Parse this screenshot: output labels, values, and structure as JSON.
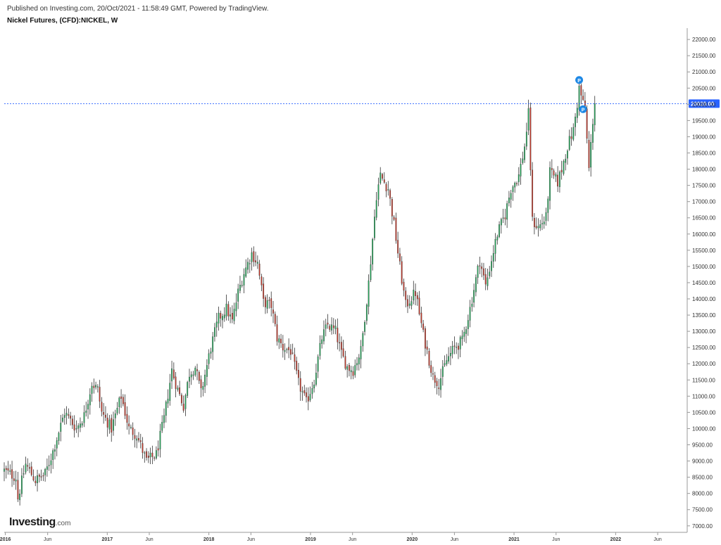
{
  "header": {
    "published": "Published on Investing.com, 20/Oct/2021 - 11:58:49 GMT, Powered by TradingView.",
    "symbol": "Nickel Futures, (CFD):NICKEL, W"
  },
  "logo": {
    "brand": "Investing",
    "domain": ".com"
  },
  "colors": {
    "up": "#26a65b",
    "down": "#c0392b",
    "wick": "#333333",
    "price_line": "#2962ff",
    "marker": "#1e88e5"
  },
  "chart_data": {
    "type": "candlestick",
    "interval": "weekly",
    "y_axis": {
      "position": "right",
      "range": [
        6800,
        22350
      ],
      "ticks": [
        7000,
        7500,
        8000,
        8500,
        9000,
        9500,
        10000,
        10500,
        11000,
        11500,
        12000,
        12500,
        13000,
        13500,
        14000,
        14500,
        15000,
        15500,
        16000,
        16500,
        17000,
        17500,
        18000,
        18500,
        19000,
        19500,
        20000,
        20500,
        21000,
        21500,
        22000
      ],
      "tick_labels": [
        "7000.00",
        "7500.00",
        "8000.00",
        "8500.00",
        "9000.00",
        "9500.00",
        "10000.00",
        "10500.00",
        "11000.00",
        "11500.00",
        "12000.00",
        "12500.00",
        "13000.00",
        "13500.00",
        "14000.00",
        "14500.00",
        "15000.00",
        "15500.00",
        "16000.00",
        "16500.00",
        "17000.00",
        "17500.00",
        "18000.00",
        "18500.00",
        "19000.00",
        "19500.00",
        "20000.00",
        "20500.00",
        "21000.00",
        "21500.00",
        "22000.00"
      ]
    },
    "x_axis": {
      "range": [
        "2015-12-28",
        "2022-09-15"
      ],
      "ticks": [
        {
          "date": "2016-01-01",
          "label": "2016",
          "major": true
        },
        {
          "date": "2016-06-01",
          "label": "Jun",
          "major": false
        },
        {
          "date": "2017-01-01",
          "label": "2017",
          "major": true
        },
        {
          "date": "2017-06-01",
          "label": "Jun",
          "major": false
        },
        {
          "date": "2018-01-01",
          "label": "2018",
          "major": true
        },
        {
          "date": "2018-06-01",
          "label": "Jun",
          "major": false
        },
        {
          "date": "2019-01-01",
          "label": "2019",
          "major": true
        },
        {
          "date": "2019-06-01",
          "label": "Jun",
          "major": false
        },
        {
          "date": "2020-01-01",
          "label": "2020",
          "major": true
        },
        {
          "date": "2020-06-01",
          "label": "Jun",
          "major": false
        },
        {
          "date": "2021-01-01",
          "label": "2021",
          "major": true
        },
        {
          "date": "2021-06-01",
          "label": "Jun",
          "major": false
        },
        {
          "date": "2022-01-01",
          "label": "2022",
          "major": true
        },
        {
          "date": "2022-06-01",
          "label": "Jun",
          "major": false
        }
      ]
    },
    "current_price": {
      "value": 20020,
      "label": "20020.00"
    },
    "markers": [
      {
        "date": "2021-08-23",
        "price": 20750,
        "label": "P"
      },
      {
        "date": "2021-09-06",
        "price": 19850,
        "label": "P"
      }
    ],
    "close_anchors": [
      [
        "2015-12-28",
        8700
      ],
      [
        "2016-02-08",
        8500
      ],
      [
        "2016-02-15",
        7850
      ],
      [
        "2016-03-14",
        8900
      ],
      [
        "2016-04-18",
        8400
      ],
      [
        "2016-05-23",
        8600
      ],
      [
        "2016-06-20",
        9300
      ],
      [
        "2016-08-01",
        10500
      ],
      [
        "2016-09-12",
        10000
      ],
      [
        "2016-10-10",
        10400
      ],
      [
        "2016-11-07",
        11400
      ],
      [
        "2016-11-28",
        11200
      ],
      [
        "2016-12-12",
        10500
      ],
      [
        "2017-01-16",
        10000
      ],
      [
        "2017-02-06",
        10600
      ],
      [
        "2017-02-20",
        11000
      ],
      [
        "2017-03-20",
        10000
      ],
      [
        "2017-04-17",
        9800
      ],
      [
        "2017-05-22",
        9000
      ],
      [
        "2017-06-26",
        9200
      ],
      [
        "2017-07-24",
        10300
      ],
      [
        "2017-08-21",
        11800
      ],
      [
        "2017-09-11",
        11200
      ],
      [
        "2017-10-02",
        10700
      ],
      [
        "2017-10-23",
        11700
      ],
      [
        "2017-11-13",
        11900
      ],
      [
        "2017-12-04",
        11100
      ],
      [
        "2018-01-08",
        12500
      ],
      [
        "2018-02-05",
        13400
      ],
      [
        "2018-03-05",
        13700
      ],
      [
        "2018-03-26",
        13300
      ],
      [
        "2018-04-16",
        14200
      ],
      [
        "2018-05-07",
        14800
      ],
      [
        "2018-06-04",
        15400
      ],
      [
        "2018-06-25",
        15100
      ],
      [
        "2018-07-16",
        13900
      ],
      [
        "2018-08-13",
        13800
      ],
      [
        "2018-09-03",
        12800
      ],
      [
        "2018-09-24",
        12500
      ],
      [
        "2018-10-22",
        12400
      ],
      [
        "2018-11-19",
        11400
      ],
      [
        "2018-12-17",
        10800
      ],
      [
        "2019-01-14",
        11500
      ],
      [
        "2019-02-11",
        12800
      ],
      [
        "2019-03-04",
        13200
      ],
      [
        "2019-04-01",
        13000
      ],
      [
        "2019-04-22",
        12300
      ],
      [
        "2019-05-13",
        11900
      ],
      [
        "2019-06-03",
        11800
      ],
      [
        "2019-07-01",
        12400
      ],
      [
        "2019-07-29",
        14500
      ],
      [
        "2019-08-26",
        17200
      ],
      [
        "2019-09-09",
        17800
      ],
      [
        "2019-10-07",
        17400
      ],
      [
        "2019-10-28",
        16300
      ],
      [
        "2019-11-18",
        15000
      ],
      [
        "2019-12-09",
        13800
      ],
      [
        "2020-01-13",
        14200
      ],
      [
        "2020-02-10",
        12900
      ],
      [
        "2020-03-16",
        11600
      ],
      [
        "2020-04-06",
        11400
      ],
      [
        "2020-05-04",
        12100
      ],
      [
        "2020-06-01",
        12500
      ],
      [
        "2020-06-29",
        12700
      ],
      [
        "2020-07-27",
        13700
      ],
      [
        "2020-08-31",
        15200
      ],
      [
        "2020-09-21",
        14400
      ],
      [
        "2020-10-12",
        15200
      ],
      [
        "2020-11-02",
        16000
      ],
      [
        "2020-11-30",
        16600
      ],
      [
        "2020-12-21",
        17400
      ],
      [
        "2021-01-18",
        17800
      ],
      [
        "2021-02-08",
        18700
      ],
      [
        "2021-02-22",
        19700
      ],
      [
        "2021-03-08",
        16400
      ],
      [
        "2021-03-29",
        16200
      ],
      [
        "2021-04-26",
        16500
      ],
      [
        "2021-05-10",
        17900
      ],
      [
        "2021-06-07",
        17600
      ],
      [
        "2021-06-21",
        18000
      ],
      [
        "2021-07-12",
        18700
      ],
      [
        "2021-08-02",
        19200
      ],
      [
        "2021-08-16",
        20000
      ],
      [
        "2021-08-23",
        20500
      ],
      [
        "2021-09-13",
        19800
      ],
      [
        "2021-09-27",
        18000
      ],
      [
        "2021-10-11",
        19500
      ],
      [
        "2021-10-18",
        20020
      ]
    ]
  }
}
